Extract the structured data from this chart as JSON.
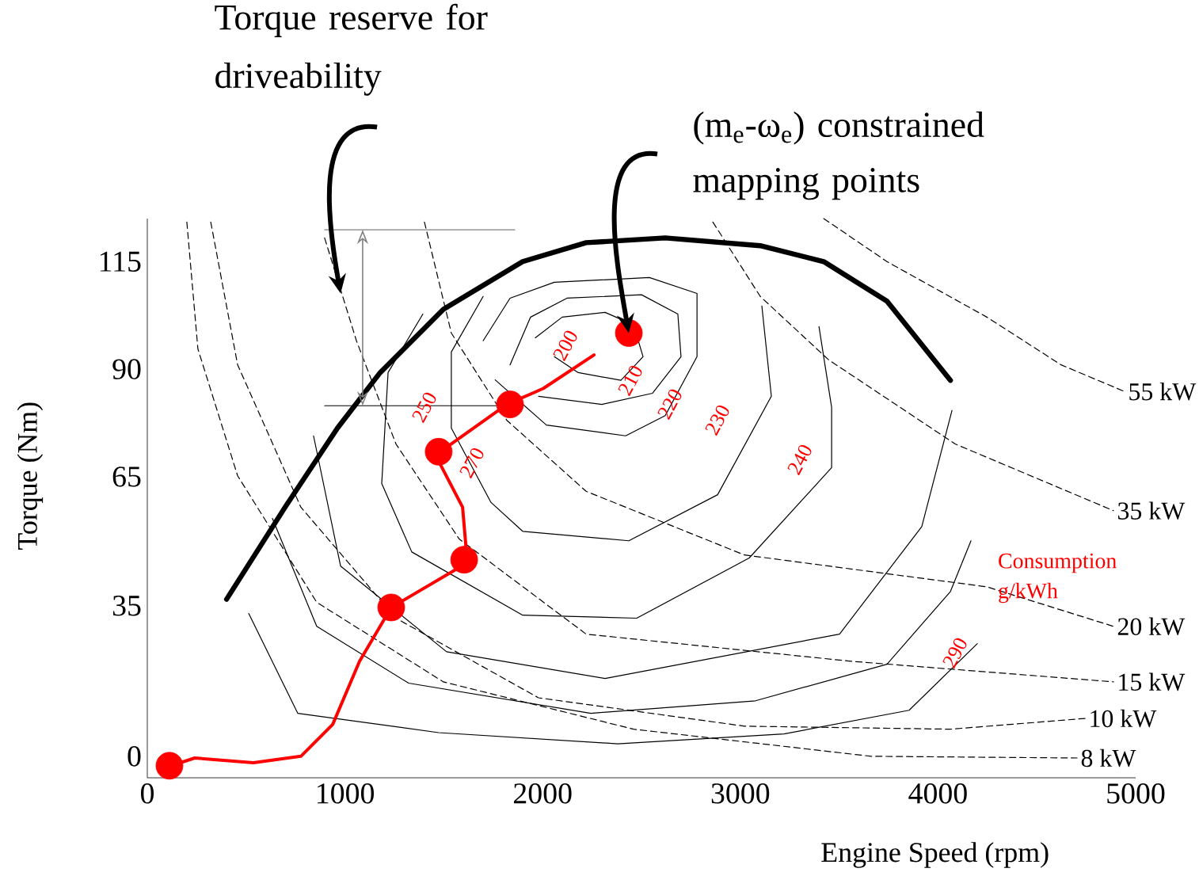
{
  "chart_data": {
    "type": "line",
    "xlabel": "Engine Speed (rpm)",
    "ylabel": "Torque (Nm)",
    "xlim": [
      0,
      5000
    ],
    "ylim": [
      -5,
      125
    ],
    "xticks": [
      0,
      1000,
      2000,
      3000,
      4000,
      5000
    ],
    "yticks": [
      0,
      35,
      65,
      90,
      115
    ],
    "series": [
      {
        "color": "#000000",
        "x": [
          401,
          697,
          962,
          1178,
          1498,
          1899,
          2220,
          2620,
          3101,
          3422,
          3742,
          4063
        ],
        "values": [
          36.5,
          57.9,
          76.3,
          89.2,
          103.9,
          115.0,
          119.4,
          120.5,
          118.7,
          115.0,
          105.8,
          87.4
        ]
      },
      {
        "name": "55 kW",
        "color": "#000000",
        "line_style": "dashed",
        "x": [
          3422,
          3742,
          4247,
          4623,
          4944
        ],
        "values": [
          125.0,
          115.0,
          102.1,
          91.0,
          84.8
        ]
      },
      {
        "name": "35 kW",
        "color": "#000000",
        "line_style": "dashed",
        "x": [
          2861,
          3101,
          3446,
          4087,
          4888
        ],
        "values": [
          124.2,
          106.9,
          92.2,
          72.6,
          57.1
        ]
      },
      {
        "name": "20 kW",
        "color": "#000000",
        "line_style": "dashed",
        "x": [
          1402,
          1538,
          1819,
          2220,
          3021,
          4247,
          4888
        ],
        "values": [
          124.2,
          98.4,
          78.1,
          61.6,
          46.8,
          39.4,
          30.2
        ]
      },
      {
        "name": "15 kW",
        "color": "#000000",
        "line_style": "dashed",
        "x": [
          897,
          1058,
          1258,
          1578,
          2220,
          3558,
          4888
        ],
        "values": [
          120.5,
          96.6,
          72.6,
          50.5,
          28.4,
          22.1,
          17.3
        ]
      },
      {
        "name": "10 kW",
        "color": "#000000",
        "line_style": "dashed",
        "x": [
          321,
          457,
          777,
          1258,
          1979,
          3021,
          4063,
          4744
        ],
        "values": [
          124.2,
          91.0,
          57.9,
          32.1,
          13.6,
          7.0,
          6.3,
          8.8
        ]
      },
      {
        "name": "8 kW",
        "color": "#000000",
        "line_style": "dashed",
        "x": [
          200,
          256,
          457,
          857,
          1498,
          2460,
          3662,
          4704
        ],
        "values": [
          124.2,
          94.7,
          65.2,
          35.8,
          17.3,
          6.3,
          0,
          -0.4
        ]
      },
      {
        "color": "#000000",
        "x": [
          1963,
          2099,
          2316,
          2460,
          2508,
          2396,
          2180,
          2059
        ],
        "values": [
          97.3,
          102.1,
          103.2,
          100.3,
          92.9,
          87.4,
          89.2,
          92.9
        ]
      },
      {
        "color": "#000000",
        "x": [
          1835,
          1939,
          2123,
          2500,
          2684,
          2700,
          2556,
          2300,
          1979
        ],
        "values": [
          91.0,
          102.1,
          106.5,
          107.3,
          102.8,
          92.9,
          84.4,
          81.8,
          83.7
        ]
      },
      {
        "color": "#000000",
        "x": [
          1699,
          1835,
          2059,
          2540,
          2781,
          2781,
          2620,
          2420,
          2019,
          1760
        ],
        "values": [
          96.6,
          106.5,
          110.2,
          111.3,
          107.6,
          92.9,
          79.2,
          74.5,
          77.0,
          87.5
        ]
      },
      {
        "color": "#000000",
        "x": [
          1699,
          1538,
          1538,
          1739,
          1899,
          2436,
          2885,
          3157,
          3109
        ],
        "values": [
          106.9,
          94.0,
          76.3,
          59.0,
          52.3,
          50.1,
          60.8,
          83.7,
          104.7
        ]
      },
      {
        "color": "#000000",
        "x": [
          1394,
          1218,
          1186,
          1338,
          1899,
          2476,
          3045,
          3462,
          3462,
          3398
        ],
        "values": [
          102.8,
          89.2,
          63.4,
          47.5,
          32.8,
          32.1,
          46.1,
          67.1,
          81.1,
          99.9
        ]
      },
      {
        "color": "#000000",
        "x": [
          841,
          978,
          1514,
          2316,
          3502,
          3918,
          4071
        ],
        "values": [
          74.5,
          44.2,
          24.3,
          18.1,
          28.4,
          53.4,
          80.4
        ]
      },
      {
        "color": "#000000",
        "x": [
          633,
          857,
          1322,
          2244,
          3077,
          3742,
          4063,
          4167
        ],
        "values": [
          55.3,
          30.2,
          17.0,
          10.0,
          12.9,
          21.4,
          38.3,
          50.1
        ]
      },
      {
        "color": "#000000",
        "x": [
          513,
          761,
          1474,
          2380,
          3221,
          3854,
          4199
        ],
        "values": [
          33.2,
          10.0,
          5.5,
          2.9,
          5.2,
          10.7,
          26.2
        ]
      },
      {
        "color": "#ff0000",
        "x": [
          96,
          240,
          537,
          777,
          938,
          1074,
          1234,
          1619,
          1595,
          1458,
          1819,
          2003,
          2260
        ],
        "values": [
          -2.6,
          -0.4,
          -1.5,
          0,
          7.4,
          22.1,
          34.6,
          45.0,
          57.9,
          70.0,
          81.8,
          85.5,
          93.3
        ]
      },
      {
        "type": "scatter",
        "marker": "circle",
        "color": "#ff0000",
        "x": [
          112,
          1234,
          1603,
          1474,
          1835,
          2436
        ],
        "values": [
          -2.2,
          34.6,
          45.7,
          70.8,
          81.8,
          98.4
        ]
      },
      {
        "color": "#808080",
        "x": [
          897,
          1859
        ],
        "values": [
          122.4,
          122.4
        ]
      },
      {
        "color": "#000000",
        "x": [
          897,
          1899
        ],
        "values": [
          81.5,
          81.5
        ]
      }
    ],
    "annotations": [
      {
        "text": "Torque reserve for driveability",
        "x": 978,
        "y": 107.6
      },
      {
        "text": "(m$_{e}$-ω$_{e}$) constrained mapping points",
        "x": 2436,
        "y": 98.4
      },
      "Consumption g/kWh",
      "200",
      "210",
      "220",
      "230",
      "240",
      "250",
      "270",
      "290"
    ]
  }
}
